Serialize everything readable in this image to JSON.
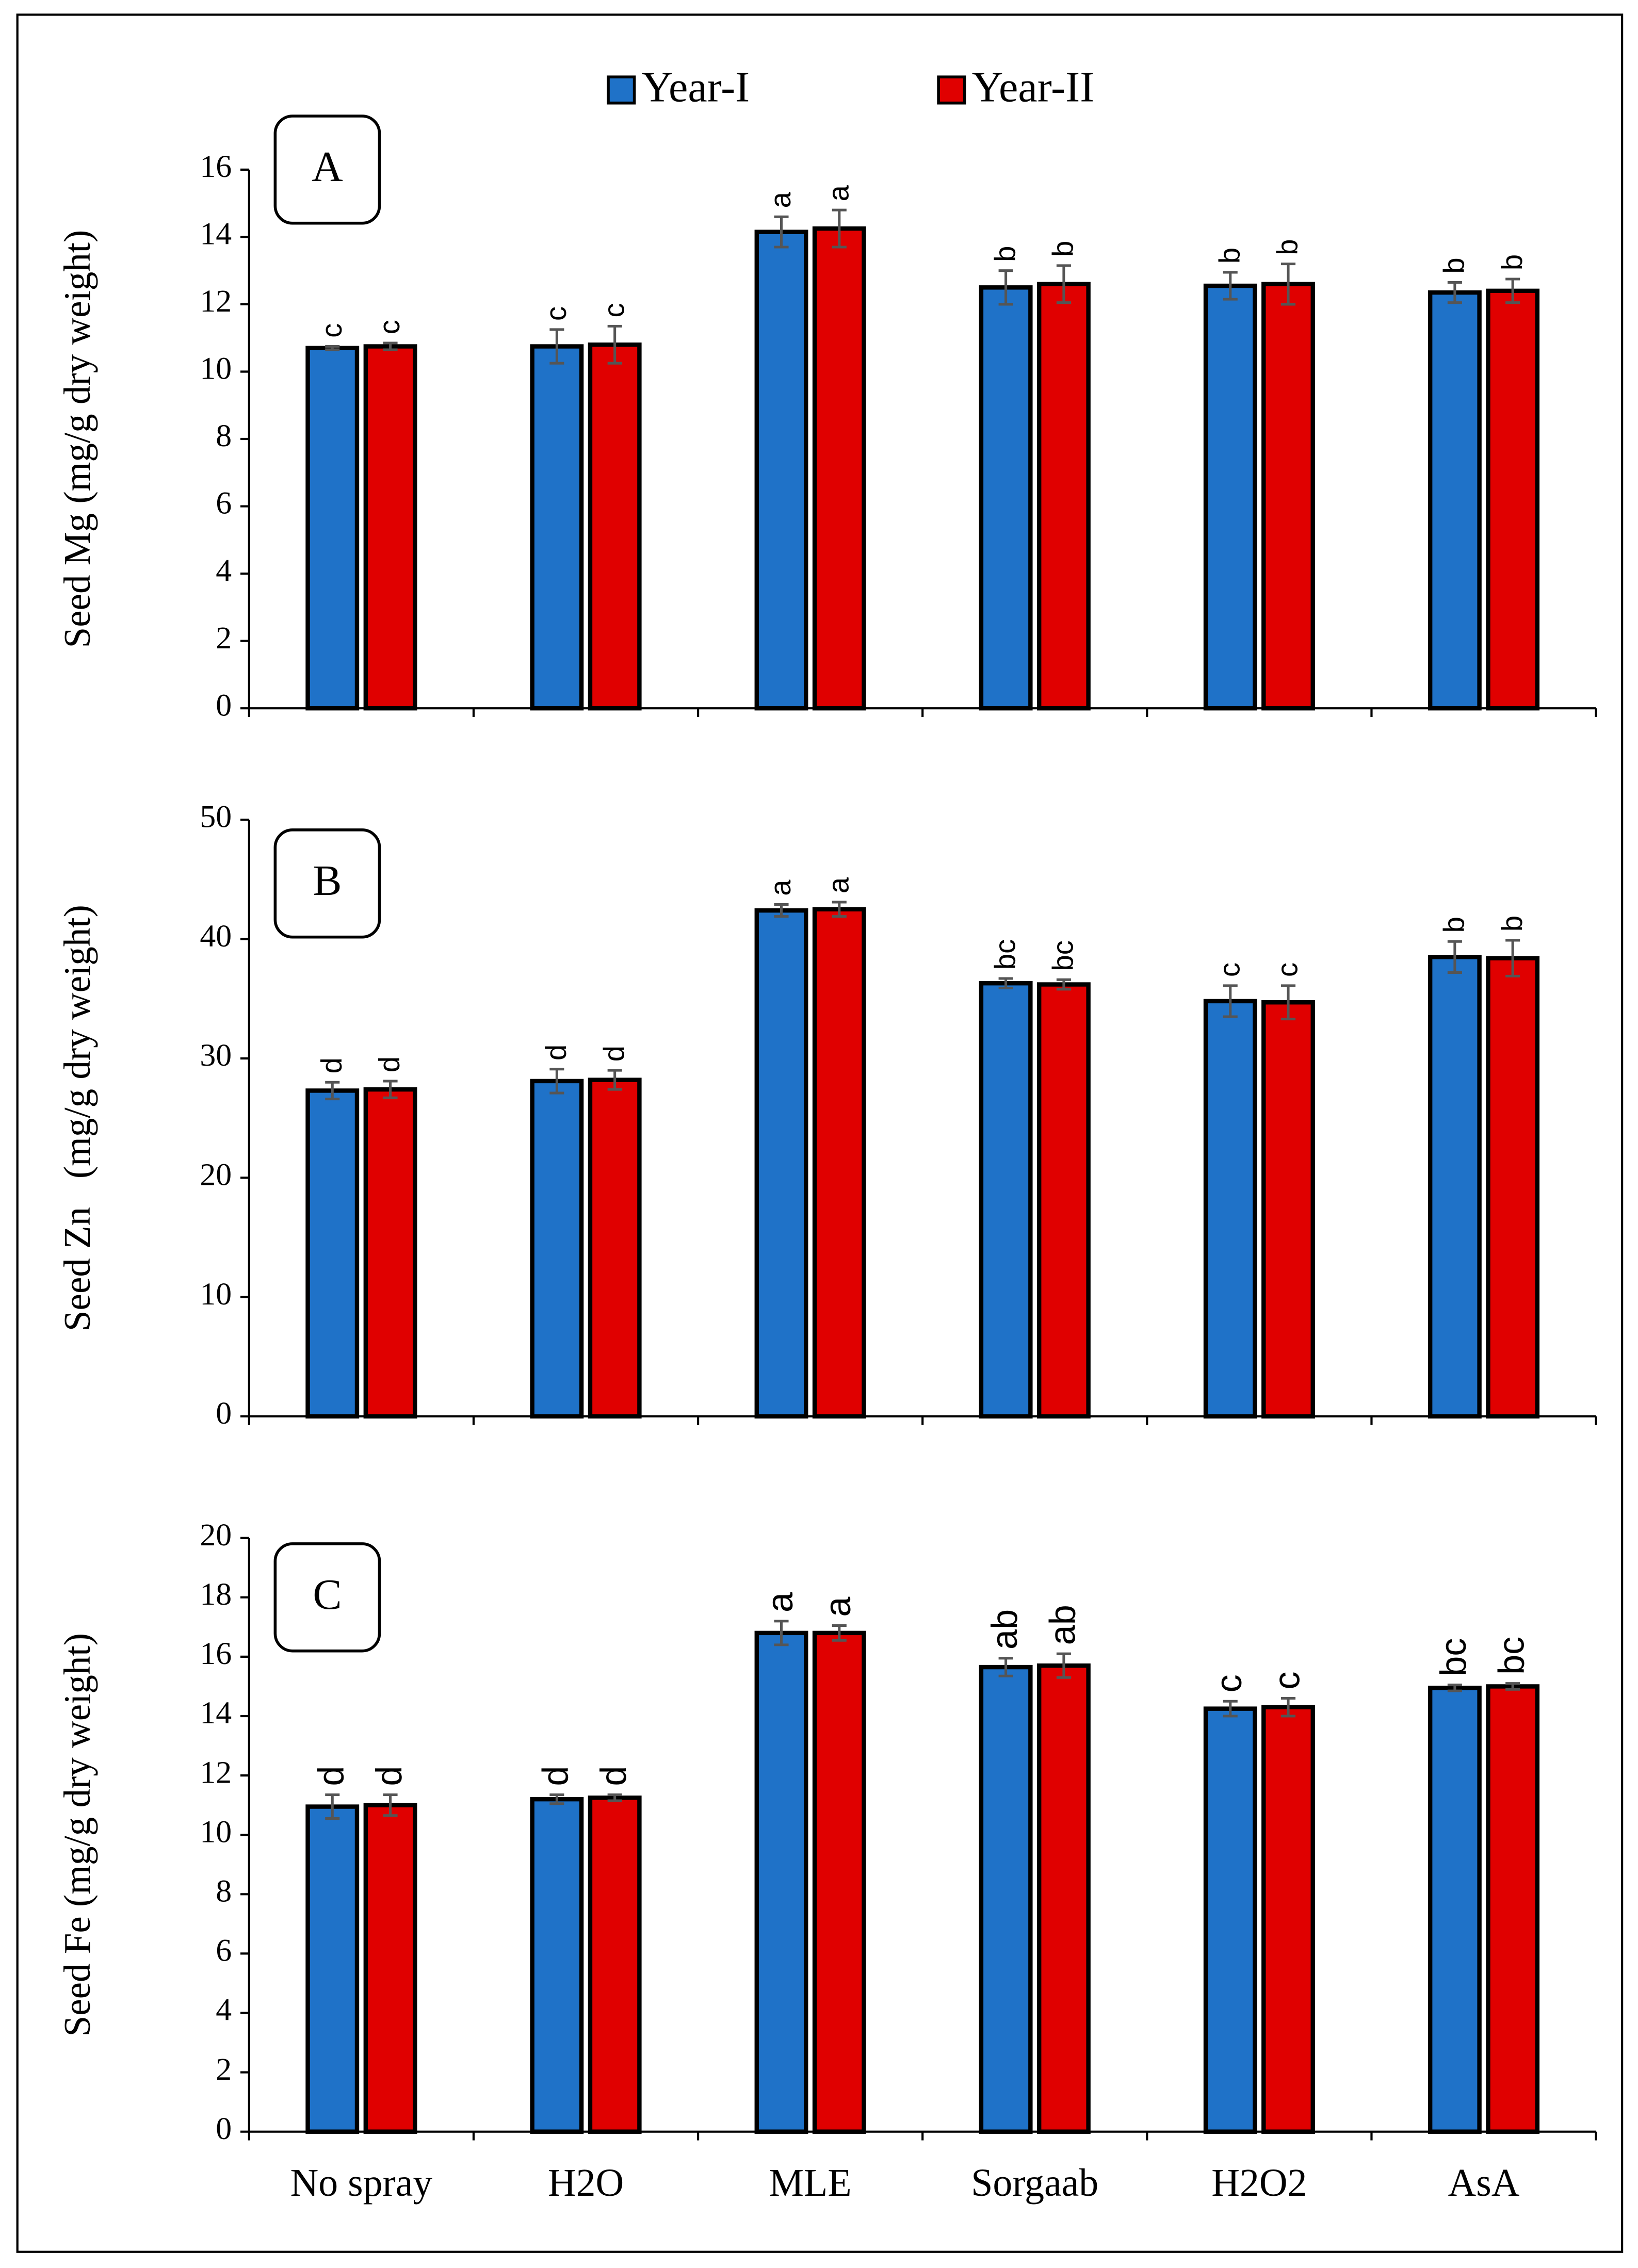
{
  "chart_data": [
    {
      "type": "bar",
      "panel": "A",
      "y_label": "Seed Mg (mg/g dry weight)",
      "categories": [
        null,
        null,
        null,
        null,
        null,
        null
      ],
      "ylim": [
        0,
        16
      ],
      "yticks": [
        0,
        2,
        4,
        6,
        8,
        10,
        12,
        14,
        16
      ],
      "series": [
        {
          "name": "Year-I",
          "color": "#1f72c8",
          "values": [
            10.7,
            10.75,
            14.15,
            12.5,
            12.55,
            12.35
          ],
          "errors": [
            0.05,
            0.5,
            0.45,
            0.5,
            0.4,
            0.3
          ],
          "letters": [
            "c",
            "c",
            "a",
            "b",
            "b",
            "b"
          ]
        },
        {
          "name": "Year-II",
          "color": "#e00000",
          "values": [
            10.75,
            10.8,
            14.25,
            12.6,
            12.6,
            12.4
          ],
          "errors": [
            0.1,
            0.55,
            0.55,
            0.55,
            0.6,
            0.35
          ],
          "letters": [
            "c",
            "c",
            "a",
            "b",
            "b",
            "b"
          ]
        }
      ]
    },
    {
      "type": "bar",
      "panel": "B",
      "y_label": "Seed Zn   (mg/g dry weight)",
      "categories": [
        null,
        null,
        null,
        null,
        null,
        null
      ],
      "ylim": [
        0,
        50
      ],
      "yticks": [
        0,
        10,
        20,
        30,
        40,
        50
      ],
      "series": [
        {
          "color": "#1f72c8",
          "values": [
            27.3,
            28.1,
            42.4,
            36.3,
            34.8,
            38.5
          ],
          "errors": [
            0.7,
            1.0,
            0.5,
            0.4,
            1.3,
            1.3
          ],
          "letters": [
            "d",
            "d",
            "a",
            "bc",
            "c",
            "b"
          ]
        },
        {
          "color": "#e00000",
          "values": [
            27.4,
            28.2,
            42.5,
            36.2,
            34.7,
            38.4
          ],
          "errors": [
            0.7,
            0.8,
            0.6,
            0.4,
            1.4,
            1.5
          ],
          "letters": [
            "d",
            "d",
            "a",
            "bc",
            "c",
            "b"
          ]
        }
      ]
    },
    {
      "type": "bar",
      "panel": "C",
      "y_label": "Seed Fe (mg/g dry weight)",
      "categories": [
        "No spray",
        "H2O",
        "MLE",
        "Sorgaab",
        "H2O2",
        "AsA"
      ],
      "ylim": [
        0,
        20
      ],
      "yticks": [
        0,
        2,
        4,
        6,
        8,
        10,
        12,
        14,
        16,
        18,
        20
      ],
      "series": [
        {
          "color": "#1f72c8",
          "values": [
            10.95,
            11.2,
            16.8,
            15.65,
            14.25,
            14.95
          ],
          "errors": [
            0.4,
            0.15,
            0.4,
            0.3,
            0.25,
            0.1
          ],
          "letters": [
            "d",
            "d",
            "a",
            "ab",
            "c",
            "bc"
          ]
        },
        {
          "color": "#e00000",
          "values": [
            11.0,
            11.25,
            16.8,
            15.7,
            14.3,
            15.0
          ],
          "errors": [
            0.35,
            0.1,
            0.25,
            0.4,
            0.3,
            0.1
          ],
          "letters": [
            "d",
            "d",
            "a",
            "ab",
            "c",
            "bc"
          ]
        }
      ]
    }
  ]
}
